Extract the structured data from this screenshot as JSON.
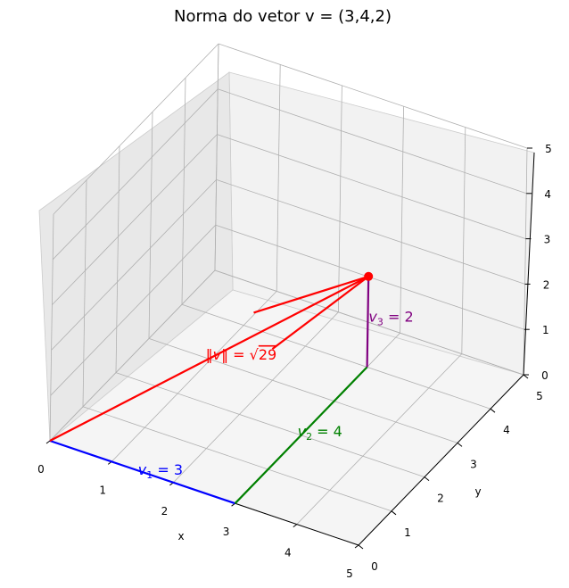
{
  "chart_data": {
    "type": "line",
    "title": "Norma do vetor v = (3,4,2)",
    "xlabel": "x",
    "ylabel": "y",
    "zlabel": "",
    "xlim": [
      0,
      5
    ],
    "ylim": [
      0,
      5
    ],
    "zlim": [
      0,
      5
    ],
    "ticks": {
      "x": [
        "0",
        "1",
        "2",
        "3",
        "4",
        "5"
      ],
      "y": [
        "0",
        "1",
        "2",
        "3",
        "4",
        "5"
      ],
      "z": [
        "0",
        "1",
        "2",
        "3",
        "4",
        "5"
      ]
    },
    "grid": true,
    "vector": [
      3,
      4,
      2
    ],
    "series": [
      {
        "color": "#0000ff",
        "points": [
          [
            0,
            0,
            0
          ],
          [
            3,
            0,
            0
          ]
        ]
      },
      {
        "color": "#008000",
        "points": [
          [
            3,
            0,
            0
          ],
          [
            3,
            4,
            0
          ]
        ]
      },
      {
        "color": "#800080",
        "points": [
          [
            3,
            4,
            0
          ],
          [
            3,
            4,
            2
          ]
        ]
      },
      {
        "color": "#ff0000",
        "points": [
          [
            0,
            0,
            0
          ],
          [
            3,
            4,
            2
          ]
        ],
        "arrow": true
      }
    ],
    "endpoint": {
      "point": [
        3,
        4,
        2
      ],
      "color": "#ff0000"
    },
    "annotations": {
      "v1": {
        "base": "v",
        "sub": "1",
        "rest": " = 3",
        "color": "#0000ff",
        "at": [
          1.5,
          0,
          0
        ]
      },
      "v2": {
        "base": "v",
        "sub": "2",
        "rest": " = 4",
        "color": "#008000",
        "at": [
          3,
          2,
          0
        ]
      },
      "v3": {
        "base": "v",
        "sub": "3",
        "rest": " = 2",
        "color": "#800080",
        "at": [
          3,
          4,
          1
        ]
      },
      "norm": {
        "prefix": "‖",
        "var": "v",
        "mid": "‖ = √",
        "radicand": "29",
        "color": "#ff0000",
        "at": [
          1.5,
          2,
          1
        ]
      }
    }
  }
}
